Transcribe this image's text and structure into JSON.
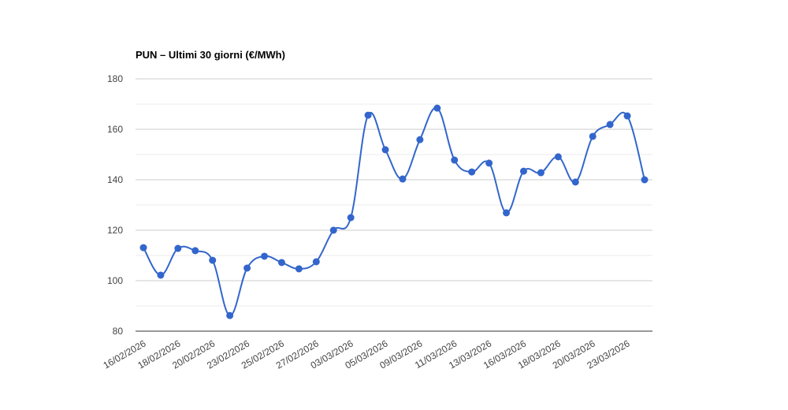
{
  "chart_data": {
    "type": "line",
    "title": "PUN – Ultimi 30 giorni (€/MWh)",
    "categories": [
      "16/02/2026",
      null,
      "18/02/2026",
      null,
      "20/02/2026",
      null,
      "23/02/2026",
      null,
      "25/02/2026",
      null,
      "27/02/2026",
      null,
      "03/03/2026",
      null,
      "05/03/2026",
      null,
      "09/03/2026",
      null,
      "11/03/2026",
      null,
      "13/03/2026",
      null,
      "16/03/2026",
      null,
      "18/03/2026",
      null,
      "20/03/2026",
      null,
      "23/03/2026",
      null
    ],
    "series": [
      {
        "name": "PUN",
        "color": "#3366cc",
        "values": [
          113.1,
          102.2,
          112.8,
          111.9,
          108.1,
          86.2,
          105,
          109.7,
          107.2,
          104.7,
          107.5,
          120,
          125,
          165.6,
          151.9,
          140.3,
          155.9,
          168.4,
          147.8,
          143.1,
          146.6,
          126.9,
          143.4,
          142.8,
          149.1,
          139.1,
          157.2,
          161.9,
          165.3,
          140
        ]
      }
    ],
    "ylim": [
      80,
      180
    ],
    "yticks": [
      80,
      100,
      120,
      140,
      160,
      180
    ],
    "minor_yticks": [
      90,
      110,
      130,
      150,
      170
    ],
    "grid": true,
    "smooth": true,
    "legend": false
  }
}
